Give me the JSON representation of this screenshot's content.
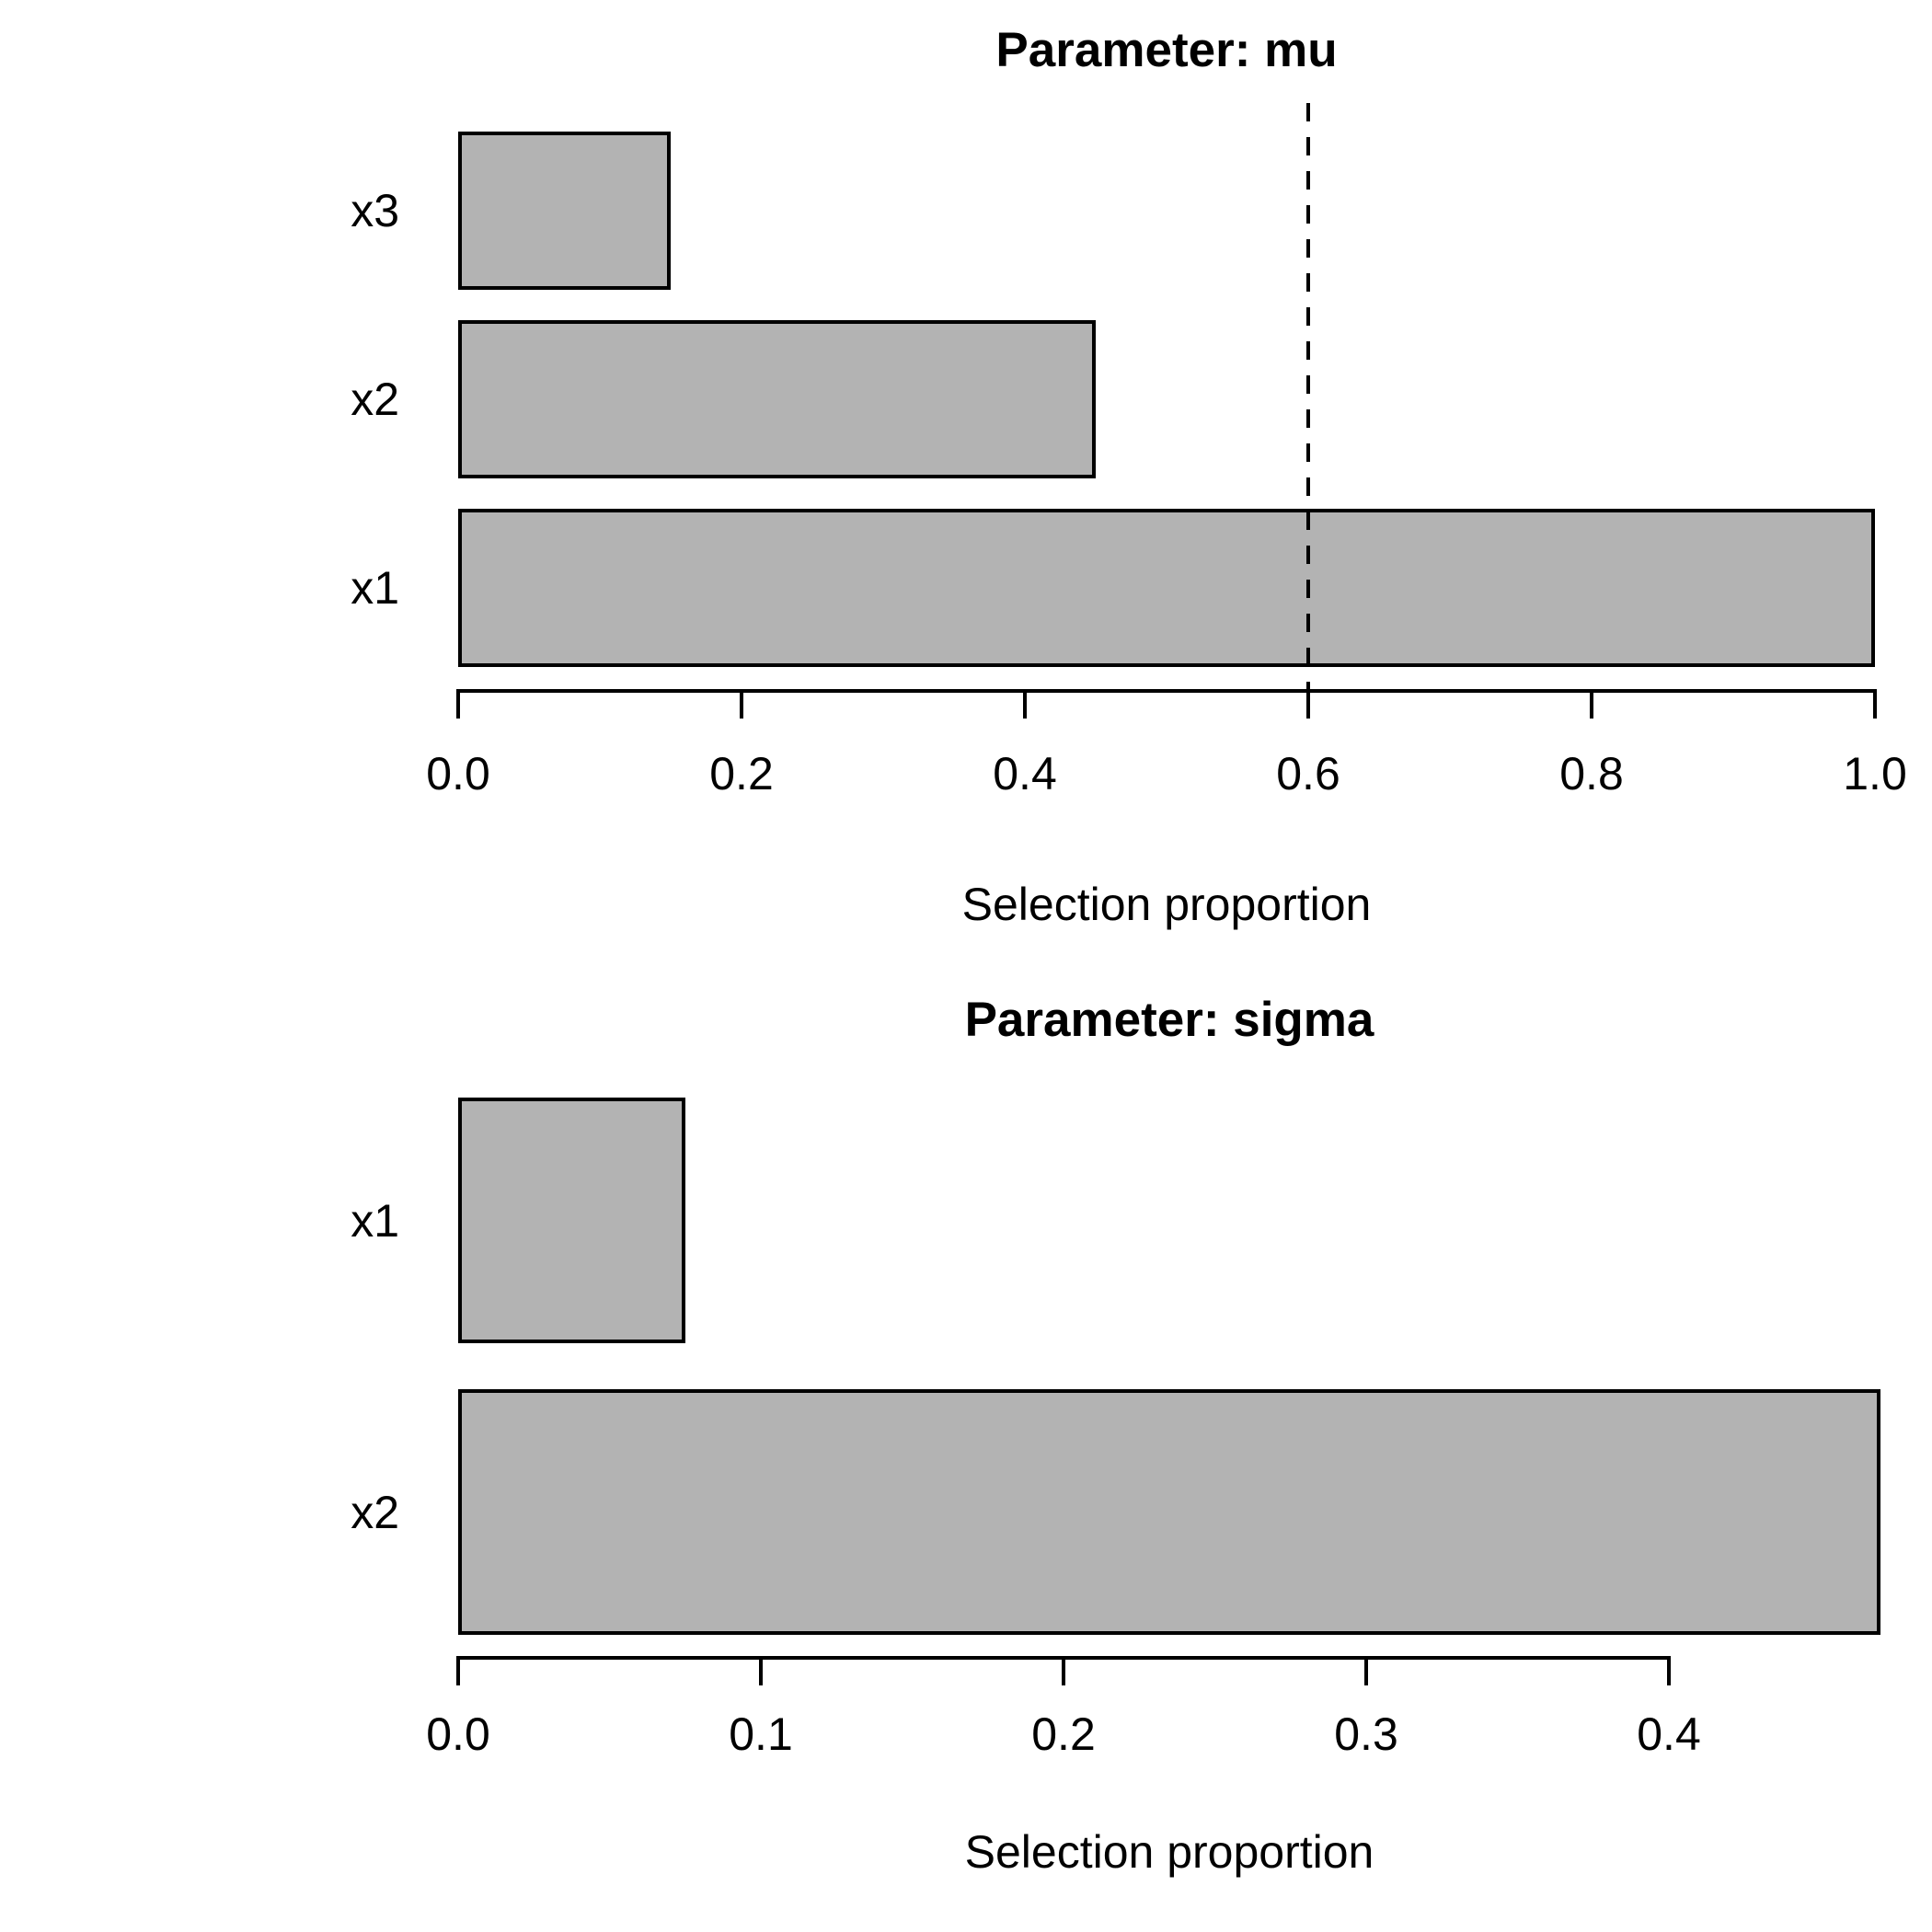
{
  "figure": {
    "background": "#ffffff",
    "text_color": "#000000"
  },
  "colors": {
    "bar_fill": "#b3b3b3",
    "bar_border": "#000000",
    "axis": "#000000",
    "threshold_line": "#000000"
  },
  "chart_data": [
    {
      "type": "bar",
      "orientation": "horizontal",
      "title": "Parameter: mu",
      "xlabel": "Selection proportion",
      "categories": [
        "x3",
        "x2",
        "x1"
      ],
      "values": [
        0.15,
        0.45,
        1.0
      ],
      "xlim": [
        0.0,
        1.0
      ],
      "tick_labels": [
        "0.0",
        "0.2",
        "0.4",
        "0.6",
        "0.8",
        "1.0"
      ],
      "threshold": 0.6,
      "threshold_style": "dashed",
      "grid": "off",
      "legend": "none"
    },
    {
      "type": "bar",
      "orientation": "horizontal",
      "title": "Parameter: sigma",
      "xlabel": "Selection proportion",
      "categories": [
        "x1",
        "x2"
      ],
      "values": [
        0.075,
        0.47
      ],
      "xlim": [
        0.0,
        0.47
      ],
      "tick_labels": [
        "0.0",
        "0.1",
        "0.2",
        "0.3",
        "0.4"
      ],
      "threshold": null,
      "threshold_style": null,
      "grid": "off",
      "legend": "none"
    }
  ]
}
